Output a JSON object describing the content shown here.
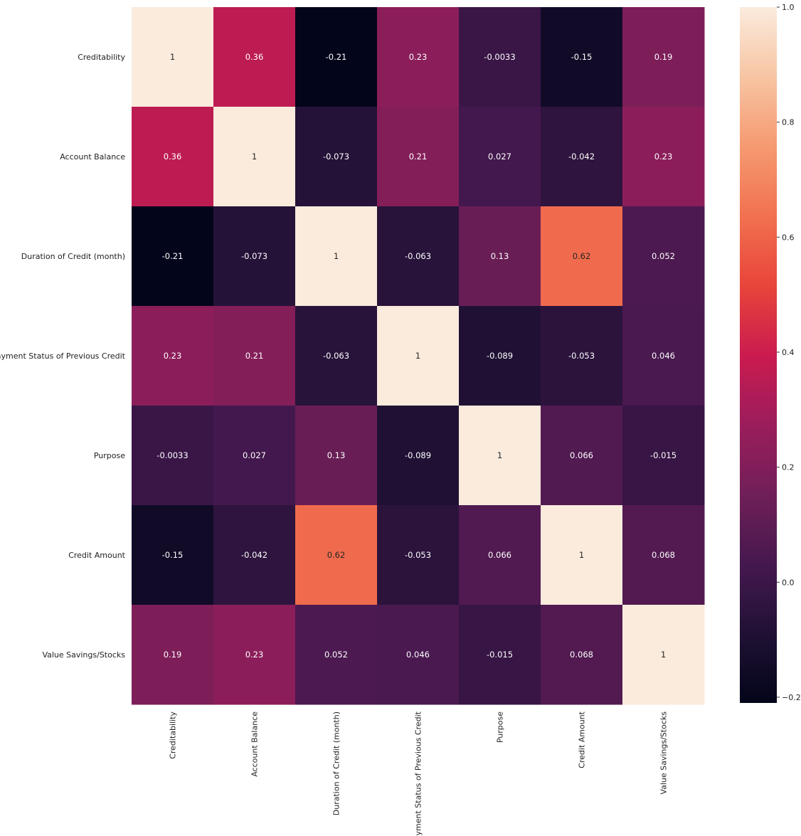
{
  "chart_data": {
    "type": "heatmap",
    "title": "",
    "xlabel": "",
    "ylabel": "",
    "row_labels": [
      "Creditability",
      "Account Balance",
      "Duration of Credit (month)",
      "Payment Status of Previous Credit",
      "Purpose",
      "Credit Amount",
      "Value Savings/Stocks"
    ],
    "col_labels": [
      "Creditability",
      "Account Balance",
      "Duration of Credit (month)",
      "Payment Status of Previous Credit",
      "Purpose",
      "Credit Amount",
      "Value Savings/Stocks"
    ],
    "values": [
      [
        1,
        0.36,
        -0.21,
        0.23,
        -0.0033,
        -0.15,
        0.19
      ],
      [
        0.36,
        1,
        -0.073,
        0.21,
        0.027,
        -0.042,
        0.23
      ],
      [
        -0.21,
        -0.073,
        1,
        -0.063,
        0.13,
        0.62,
        0.052
      ],
      [
        0.23,
        0.21,
        -0.063,
        1,
        -0.089,
        -0.053,
        0.046
      ],
      [
        -0.0033,
        0.027,
        0.13,
        -0.089,
        1,
        0.066,
        -0.015
      ],
      [
        -0.15,
        -0.042,
        0.62,
        -0.053,
        0.066,
        1,
        0.068
      ],
      [
        0.19,
        0.23,
        0.052,
        0.046,
        -0.015,
        0.068,
        1
      ]
    ],
    "annotations": [
      [
        "1",
        "0.36",
        "-0.21",
        "0.23",
        "-0.0033",
        "-0.15",
        "0.19"
      ],
      [
        "0.36",
        "1",
        "-0.073",
        "0.21",
        "0.027",
        "-0.042",
        "0.23"
      ],
      [
        "-0.21",
        "-0.073",
        "1",
        "-0.063",
        "0.13",
        "0.62",
        "0.052"
      ],
      [
        "0.23",
        "0.21",
        "-0.063",
        "1",
        "-0.089",
        "-0.053",
        "0.046"
      ],
      [
        "-0.0033",
        "0.027",
        "0.13",
        "-0.089",
        "1",
        "0.066",
        "-0.015"
      ],
      [
        "-0.15",
        "-0.042",
        "0.62",
        "-0.053",
        "0.066",
        "1",
        "0.068"
      ],
      [
        "0.19",
        "0.23",
        "0.052",
        "0.046",
        "-0.015",
        "0.068",
        "1"
      ]
    ],
    "colorbar": {
      "vmin": -0.21,
      "vmax": 1,
      "ticks": [
        -0.2,
        0.0,
        0.2,
        0.4,
        0.6,
        0.8,
        1.0
      ],
      "tick_labels": [
        "−0.2",
        "0.0",
        "0.2",
        "0.4",
        "0.6",
        "0.8",
        "1.0"
      ],
      "placement": "right"
    },
    "colormap": "rocket",
    "grid": false
  }
}
